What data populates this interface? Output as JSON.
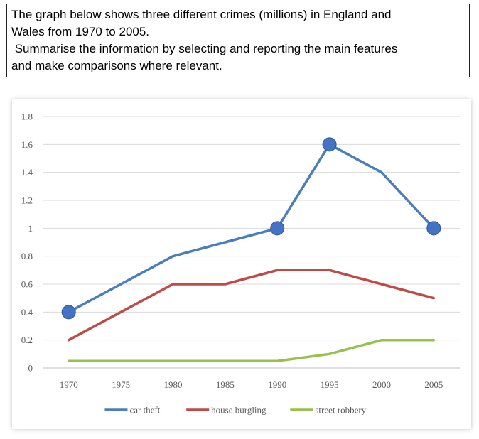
{
  "prompt": {
    "line1": "The graph below shows three different crimes (millions) in England and",
    "line2": "Wales from 1970 to 2005.",
    "line3": " Summarise the information by selecting and reporting the main features",
    "line4": "and make comparisons where relevant."
  },
  "chart_data": {
    "type": "line",
    "title": "",
    "xlabel": "",
    "ylabel": "",
    "categories": [
      "1970",
      "1975",
      "1980",
      "1985",
      "1990",
      "1995",
      "2000",
      "2005"
    ],
    "ylim": [
      0,
      1.8
    ],
    "yticks": [
      "0",
      "0.2",
      "0.4",
      "0.6",
      "0.8",
      "1",
      "1.2",
      "1.4",
      "1.6",
      "1.8"
    ],
    "grid": true,
    "legend_position": "bottom",
    "series": [
      {
        "name": "car theft",
        "color": "#4a7ebb",
        "values": [
          0.4,
          0.6,
          0.8,
          0.9,
          1.0,
          1.6,
          1.4,
          1.0
        ],
        "markers_at": [
          "1970",
          "1990",
          "1995",
          "2005"
        ]
      },
      {
        "name": "house burgling",
        "color": "#be4b48",
        "values": [
          0.2,
          0.4,
          0.6,
          0.6,
          0.7,
          0.7,
          0.6,
          0.5
        ],
        "markers_at": []
      },
      {
        "name": "street robbery",
        "color": "#98c04d",
        "values": [
          0.05,
          0.05,
          0.05,
          0.05,
          0.05,
          0.1,
          0.2,
          0.2
        ],
        "markers_at": []
      }
    ]
  }
}
